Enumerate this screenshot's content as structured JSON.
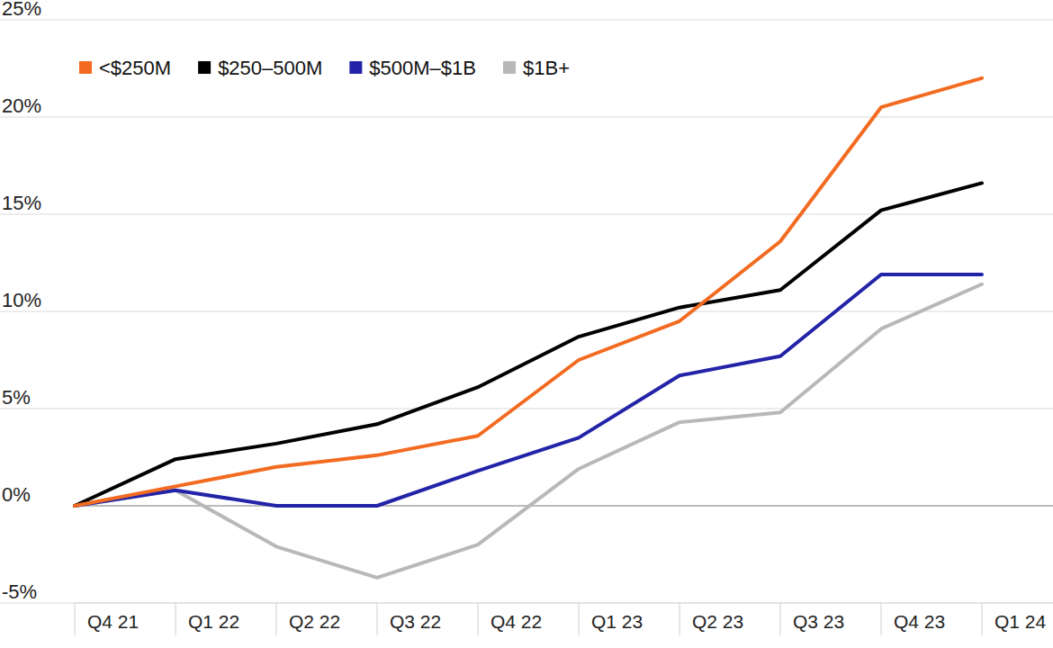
{
  "chart_data": {
    "type": "line",
    "categories": [
      "Q4 21",
      "Q1 22",
      "Q2 22",
      "Q3 22",
      "Q4 22",
      "Q1 23",
      "Q2 23",
      "Q3 23",
      "Q4 23",
      "Q1 24"
    ],
    "series": [
      {
        "name": "<$250M",
        "color": "#f26b21",
        "values": [
          0,
          1.0,
          2.0,
          2.6,
          3.6,
          7.5,
          9.5,
          13.6,
          20.5,
          22.0
        ]
      },
      {
        "name": "$250–500M",
        "color": "#000000",
        "values": [
          0,
          2.4,
          3.2,
          4.2,
          6.1,
          8.7,
          10.2,
          11.1,
          15.2,
          16.6
        ]
      },
      {
        "name": "$500M–$1B",
        "color": "#2323a8",
        "values": [
          0,
          0.8,
          0,
          0,
          1.8,
          3.5,
          6.7,
          7.7,
          11.9,
          11.9
        ]
      },
      {
        "name": "$1B+",
        "color": "#b8b8b8",
        "values": [
          0,
          0.8,
          -2.1,
          -3.7,
          -2.0,
          1.9,
          4.3,
          4.8,
          9.1,
          11.4
        ]
      }
    ],
    "ylim": [
      -5,
      25
    ],
    "yticks": [
      {
        "value": -5,
        "label": "-5%"
      },
      {
        "value": 0,
        "label": "0%"
      },
      {
        "value": 5,
        "label": "5%"
      },
      {
        "value": 10,
        "label": "10%"
      },
      {
        "value": 15,
        "label": "15%"
      },
      {
        "value": 20,
        "label": "20%"
      },
      {
        "value": 25,
        "label": "25%"
      }
    ],
    "grid": true,
    "legend": "top-left"
  }
}
